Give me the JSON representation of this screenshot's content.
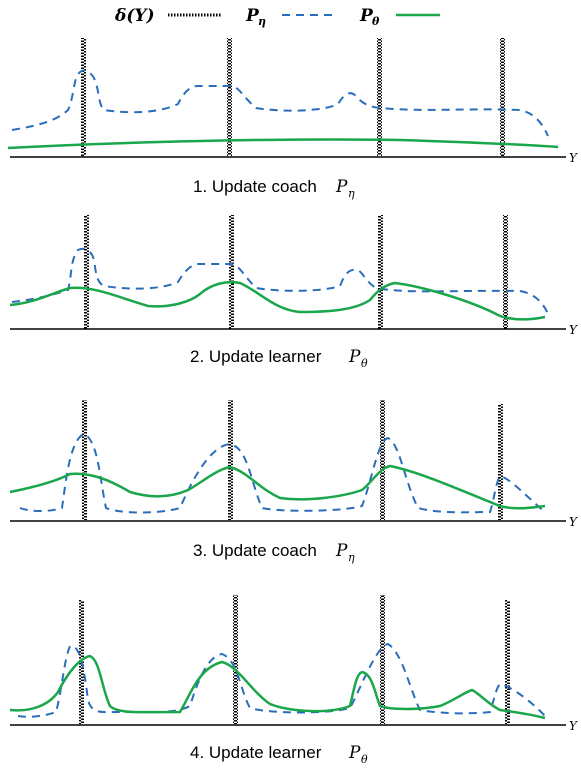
{
  "legend": {
    "delta": {
      "main": "δ(Y)",
      "color": "#000000"
    },
    "coach": {
      "main": "P",
      "sub": "η",
      "color": "#2a6ebb"
    },
    "learner": {
      "main": "P",
      "sub": "θ",
      "color": "#1aa64a"
    }
  },
  "axis_label": "Y",
  "panels": [
    {
      "caption": "1. Update coach",
      "var": "P",
      "sub": "η"
    },
    {
      "caption": "2. Update learner",
      "var": "P",
      "sub": "θ"
    },
    {
      "caption": "3. Update coach",
      "var": "P",
      "sub": "η"
    },
    {
      "caption": "4. Update learner",
      "var": "P",
      "sub": "θ"
    }
  ]
}
